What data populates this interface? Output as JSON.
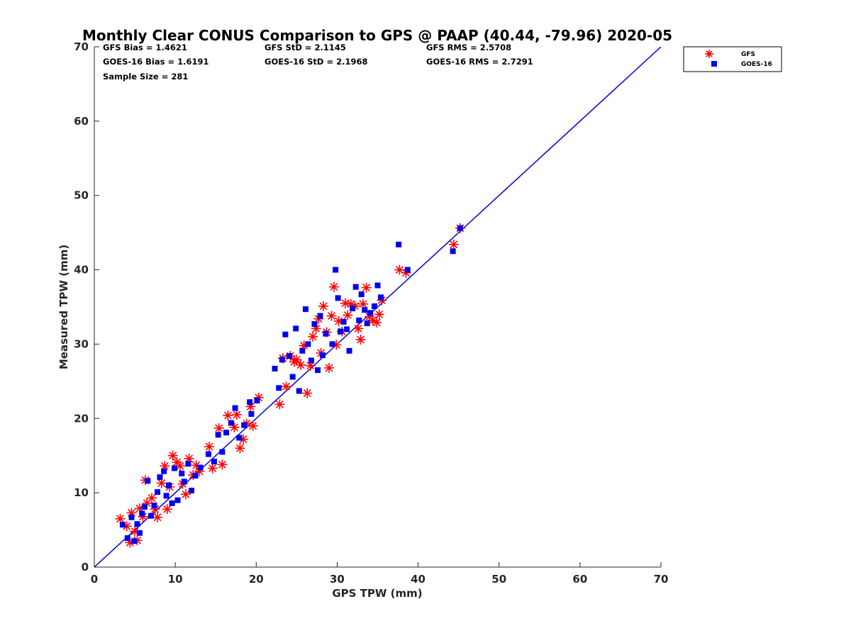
{
  "chart_data": {
    "type": "scatter",
    "title": "Monthly Clear CONUS Comparison to GPS @ PAAP (40.44, -79.96) 2020-05",
    "xlabel": "GPS TPW (mm)",
    "ylabel": "Measured TPW (mm)",
    "xlim": [
      0,
      70
    ],
    "ylim": [
      0,
      70
    ],
    "xticks": [
      0,
      10,
      20,
      30,
      40,
      50,
      60,
      70
    ],
    "yticks": [
      0,
      10,
      20,
      30,
      40,
      50,
      60,
      70
    ],
    "legend_position": "outside-top-right",
    "stats": {
      "gfs_bias": "GFS Bias = 1.4621",
      "goes_bias": "GOES-16 Bias = 1.6191",
      "sample_size": "Sample Size = 281",
      "gfs_std": "GFS StD = 2.1145",
      "goes_std": "GOES-16 StD = 2.1968",
      "gfs_rms": "GFS RMS = 2.5708",
      "goes_rms": "GOES-16 RMS = 2.7291"
    },
    "reference_line": {
      "x": [
        0,
        70
      ],
      "y": [
        0,
        70
      ],
      "color": "#0000dd"
    },
    "series": [
      {
        "name": "GFS",
        "marker": "asterisk",
        "color": "#ff0000",
        "points": [
          [
            3.2,
            6.5
          ],
          [
            4.0,
            5.5
          ],
          [
            4.4,
            3.3
          ],
          [
            4.6,
            7.3
          ],
          [
            5.0,
            4.8
          ],
          [
            5.3,
            3.6
          ],
          [
            5.6,
            7.9
          ],
          [
            6.0,
            6.8
          ],
          [
            6.3,
            11.7
          ],
          [
            6.5,
            8.6
          ],
          [
            7.1,
            9.3
          ],
          [
            7.5,
            7.8
          ],
          [
            7.8,
            6.7
          ],
          [
            8.3,
            11.3
          ],
          [
            8.7,
            13.6
          ],
          [
            9.0,
            7.8
          ],
          [
            9.3,
            10.8
          ],
          [
            9.7,
            15.0
          ],
          [
            10.2,
            14.1
          ],
          [
            10.6,
            13.6
          ],
          [
            10.9,
            11.2
          ],
          [
            11.3,
            9.8
          ],
          [
            11.7,
            14.6
          ],
          [
            12.2,
            12.4
          ],
          [
            12.6,
            13.7
          ],
          [
            13.0,
            12.9
          ],
          [
            14.2,
            16.2
          ],
          [
            14.6,
            13.3
          ],
          [
            15.4,
            18.7
          ],
          [
            15.8,
            13.8
          ],
          [
            16.5,
            20.4
          ],
          [
            17.3,
            18.8
          ],
          [
            17.6,
            20.5
          ],
          [
            18.0,
            16.0
          ],
          [
            18.4,
            17.2
          ],
          [
            18.8,
            19.3
          ],
          [
            19.3,
            21.6
          ],
          [
            19.6,
            19.0
          ],
          [
            20.3,
            22.8
          ],
          [
            22.9,
            21.9
          ],
          [
            23.3,
            28.1
          ],
          [
            23.7,
            24.3
          ],
          [
            24.2,
            28.4
          ],
          [
            24.7,
            27.6
          ],
          [
            25.0,
            27.9
          ],
          [
            25.5,
            27.2
          ],
          [
            25.9,
            29.8
          ],
          [
            26.3,
            23.4
          ],
          [
            26.7,
            27.1
          ],
          [
            27.0,
            31.0
          ],
          [
            27.4,
            32.1
          ],
          [
            27.7,
            33.4
          ],
          [
            28.0,
            28.8
          ],
          [
            28.3,
            35.1
          ],
          [
            28.7,
            31.6
          ],
          [
            29.0,
            26.8
          ],
          [
            29.3,
            33.8
          ],
          [
            29.6,
            37.7
          ],
          [
            29.9,
            29.9
          ],
          [
            30.2,
            33.1
          ],
          [
            30.6,
            31.7
          ],
          [
            31.0,
            35.5
          ],
          [
            31.3,
            33.9
          ],
          [
            31.7,
            35.4
          ],
          [
            32.2,
            35.1
          ],
          [
            32.6,
            32.1
          ],
          [
            32.9,
            30.6
          ],
          [
            33.2,
            35.4
          ],
          [
            33.6,
            37.6
          ],
          [
            34.0,
            33.7
          ],
          [
            34.4,
            33.2
          ],
          [
            34.9,
            32.9
          ],
          [
            35.2,
            34.0
          ],
          [
            35.5,
            35.9
          ],
          [
            37.7,
            40.0
          ],
          [
            38.5,
            39.6
          ],
          [
            44.4,
            43.4
          ],
          [
            45.2,
            45.6
          ]
        ]
      },
      {
        "name": "GOES-16",
        "marker": "square",
        "color": "#0000ee",
        "points": [
          [
            3.5,
            5.7
          ],
          [
            4.1,
            3.9
          ],
          [
            4.6,
            6.7
          ],
          [
            4.9,
            3.5
          ],
          [
            5.3,
            5.8
          ],
          [
            5.6,
            4.6
          ],
          [
            5.9,
            7.2
          ],
          [
            6.2,
            8.1
          ],
          [
            6.6,
            11.6
          ],
          [
            7.0,
            6.9
          ],
          [
            7.4,
            8.3
          ],
          [
            7.8,
            10.1
          ],
          [
            8.1,
            12.1
          ],
          [
            8.6,
            12.9
          ],
          [
            8.9,
            9.6
          ],
          [
            9.2,
            11.0
          ],
          [
            9.6,
            8.6
          ],
          [
            9.9,
            13.3
          ],
          [
            10.3,
            9.0
          ],
          [
            10.8,
            12.6
          ],
          [
            11.1,
            11.5
          ],
          [
            11.6,
            13.9
          ],
          [
            12.0,
            10.3
          ],
          [
            12.5,
            12.3
          ],
          [
            13.1,
            13.4
          ],
          [
            14.1,
            15.2
          ],
          [
            14.8,
            14.2
          ],
          [
            15.3,
            17.8
          ],
          [
            15.8,
            15.5
          ],
          [
            16.3,
            18.1
          ],
          [
            16.9,
            19.4
          ],
          [
            17.4,
            21.4
          ],
          [
            17.9,
            17.4
          ],
          [
            18.5,
            19.1
          ],
          [
            19.2,
            22.2
          ],
          [
            19.4,
            20.6
          ],
          [
            20.1,
            22.4
          ],
          [
            22.3,
            26.7
          ],
          [
            22.8,
            24.1
          ],
          [
            23.2,
            27.9
          ],
          [
            23.6,
            31.3
          ],
          [
            24.1,
            28.4
          ],
          [
            24.5,
            25.6
          ],
          [
            24.9,
            32.1
          ],
          [
            25.3,
            23.7
          ],
          [
            25.7,
            29.1
          ],
          [
            26.1,
            34.7
          ],
          [
            26.4,
            30.0
          ],
          [
            26.8,
            27.8
          ],
          [
            27.2,
            32.7
          ],
          [
            27.6,
            26.5
          ],
          [
            27.9,
            33.8
          ],
          [
            28.2,
            28.5
          ],
          [
            28.6,
            31.4
          ],
          [
            29.4,
            30.0
          ],
          [
            29.8,
            40.0
          ],
          [
            30.1,
            36.2
          ],
          [
            30.4,
            31.7
          ],
          [
            30.8,
            33.0
          ],
          [
            31.2,
            32.0
          ],
          [
            31.5,
            29.1
          ],
          [
            31.9,
            34.8
          ],
          [
            32.3,
            37.7
          ],
          [
            32.7,
            33.2
          ],
          [
            33.0,
            36.7
          ],
          [
            33.4,
            34.6
          ],
          [
            33.7,
            32.8
          ],
          [
            34.1,
            34.2
          ],
          [
            34.6,
            35.1
          ],
          [
            35.0,
            37.9
          ],
          [
            35.4,
            36.3
          ],
          [
            37.6,
            43.4
          ],
          [
            38.7,
            40.0
          ],
          [
            44.3,
            42.5
          ],
          [
            45.2,
            45.6
          ]
        ]
      }
    ]
  }
}
